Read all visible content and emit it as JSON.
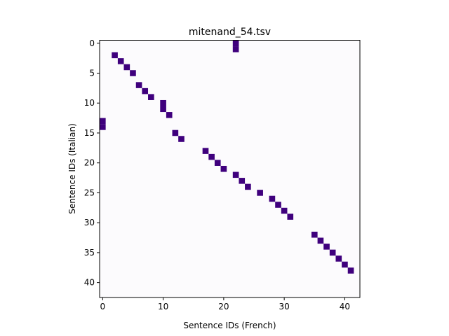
{
  "chart_data": {
    "type": "heatmap",
    "title": "mitenand_54.tsv",
    "xlabel": "Sentence IDs (French)",
    "ylabel": "Sentence IDs (Italian)",
    "xlim": [
      -0.5,
      42.5
    ],
    "ylim": [
      42.5,
      -0.5
    ],
    "x_ticks": [
      0,
      10,
      20,
      30,
      40
    ],
    "y_ticks": [
      0,
      5,
      10,
      15,
      20,
      25,
      30,
      35,
      40
    ],
    "grid": false,
    "background_color": "#fcfbfd",
    "cell_color": "#3f007d",
    "cells": [
      {
        "x": 22,
        "y": 0
      },
      {
        "x": 22,
        "y": 1
      },
      {
        "x": 2,
        "y": 2
      },
      {
        "x": 3,
        "y": 3
      },
      {
        "x": 4,
        "y": 4
      },
      {
        "x": 5,
        "y": 5
      },
      {
        "x": 6,
        "y": 7
      },
      {
        "x": 7,
        "y": 8
      },
      {
        "x": 8,
        "y": 9
      },
      {
        "x": 10,
        "y": 10
      },
      {
        "x": 10,
        "y": 11
      },
      {
        "x": 11,
        "y": 12
      },
      {
        "x": 0,
        "y": 13
      },
      {
        "x": 0,
        "y": 14
      },
      {
        "x": 12,
        "y": 15
      },
      {
        "x": 13,
        "y": 16
      },
      {
        "x": 17,
        "y": 18
      },
      {
        "x": 18,
        "y": 19
      },
      {
        "x": 19,
        "y": 20
      },
      {
        "x": 20,
        "y": 21
      },
      {
        "x": 22,
        "y": 22
      },
      {
        "x": 23,
        "y": 23
      },
      {
        "x": 24,
        "y": 24
      },
      {
        "x": 26,
        "y": 25
      },
      {
        "x": 28,
        "y": 26
      },
      {
        "x": 29,
        "y": 27
      },
      {
        "x": 30,
        "y": 28
      },
      {
        "x": 31,
        "y": 29
      },
      {
        "x": 35,
        "y": 32
      },
      {
        "x": 36,
        "y": 33
      },
      {
        "x": 37,
        "y": 34
      },
      {
        "x": 38,
        "y": 35
      },
      {
        "x": 39,
        "y": 36
      },
      {
        "x": 40,
        "y": 37
      },
      {
        "x": 41,
        "y": 38
      }
    ]
  }
}
